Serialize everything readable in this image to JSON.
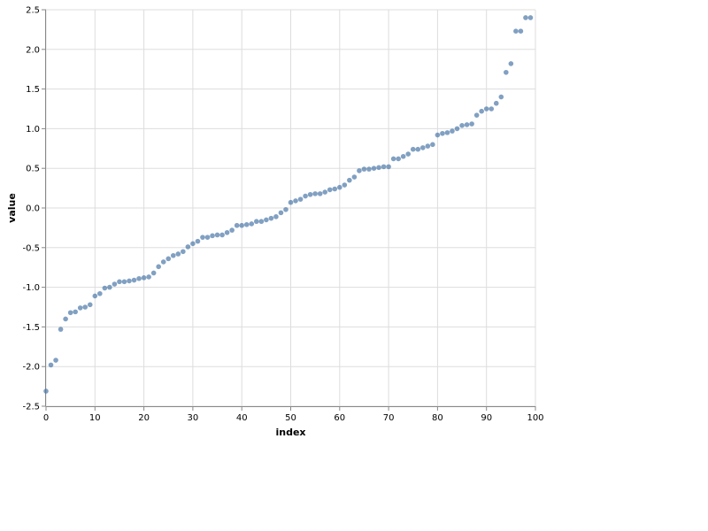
{
  "chart_data": {
    "type": "scatter",
    "xlabel": "index",
    "ylabel": "value",
    "xlim": [
      0,
      100
    ],
    "ylim": [
      -2.5,
      2.5
    ],
    "x_ticks": [
      0,
      10,
      20,
      30,
      40,
      50,
      60,
      70,
      80,
      90,
      100
    ],
    "y_ticks": [
      -2.5,
      -2.0,
      -1.5,
      -1.0,
      -0.5,
      0.0,
      0.5,
      1.0,
      1.5,
      2.0,
      2.5
    ],
    "x_tick_labels": [
      "0",
      "10",
      "20",
      "30",
      "40",
      "50",
      "60",
      "70",
      "80",
      "90",
      "100"
    ],
    "y_tick_labels": [
      "-2.5",
      "-2.0",
      "-1.5",
      "-1.0",
      "-0.5",
      "0.0",
      "0.5",
      "1.0",
      "1.5",
      "2.0",
      "2.5"
    ],
    "grid": true,
    "point_color": "#4c78a8",
    "x": [
      0,
      1,
      2,
      3,
      4,
      5,
      6,
      7,
      8,
      9,
      10,
      11,
      12,
      13,
      14,
      15,
      16,
      17,
      18,
      19,
      20,
      21,
      22,
      23,
      24,
      25,
      26,
      27,
      28,
      29,
      30,
      31,
      32,
      33,
      34,
      35,
      36,
      37,
      38,
      39,
      40,
      41,
      42,
      43,
      44,
      45,
      46,
      47,
      48,
      49,
      50,
      51,
      52,
      53,
      54,
      55,
      56,
      57,
      58,
      59,
      60,
      61,
      62,
      63,
      64,
      65,
      66,
      67,
      68,
      69,
      70,
      71,
      72,
      73,
      74,
      75,
      76,
      77,
      78,
      79,
      80,
      81,
      82,
      83,
      84,
      85,
      86,
      87,
      88,
      89,
      90,
      91,
      92,
      93,
      94,
      95,
      96,
      97,
      98,
      99
    ],
    "y": [
      -2.31,
      -1.98,
      -1.92,
      -1.53,
      -1.4,
      -1.32,
      -1.31,
      -1.26,
      -1.25,
      -1.22,
      -1.11,
      -1.08,
      -1.01,
      -1.0,
      -0.96,
      -0.93,
      -0.93,
      -0.92,
      -0.91,
      -0.89,
      -0.88,
      -0.87,
      -0.82,
      -0.74,
      -0.68,
      -0.64,
      -0.6,
      -0.58,
      -0.55,
      -0.49,
      -0.45,
      -0.42,
      -0.37,
      -0.37,
      -0.35,
      -0.34,
      -0.34,
      -0.31,
      -0.28,
      -0.22,
      -0.22,
      -0.21,
      -0.2,
      -0.17,
      -0.17,
      -0.15,
      -0.13,
      -0.11,
      -0.06,
      -0.02,
      0.07,
      0.09,
      0.11,
      0.15,
      0.17,
      0.18,
      0.18,
      0.2,
      0.23,
      0.24,
      0.26,
      0.29,
      0.35,
      0.39,
      0.47,
      0.49,
      0.49,
      0.5,
      0.51,
      0.52,
      0.52,
      0.62,
      0.62,
      0.65,
      0.68,
      0.74,
      0.74,
      0.76,
      0.78,
      0.8,
      0.92,
      0.94,
      0.95,
      0.97,
      1.0,
      1.04,
      1.05,
      1.06,
      1.17,
      1.22,
      1.25,
      1.25,
      1.32,
      1.4,
      1.71,
      1.82,
      2.23,
      2.23,
      2.4,
      2.4
    ]
  }
}
